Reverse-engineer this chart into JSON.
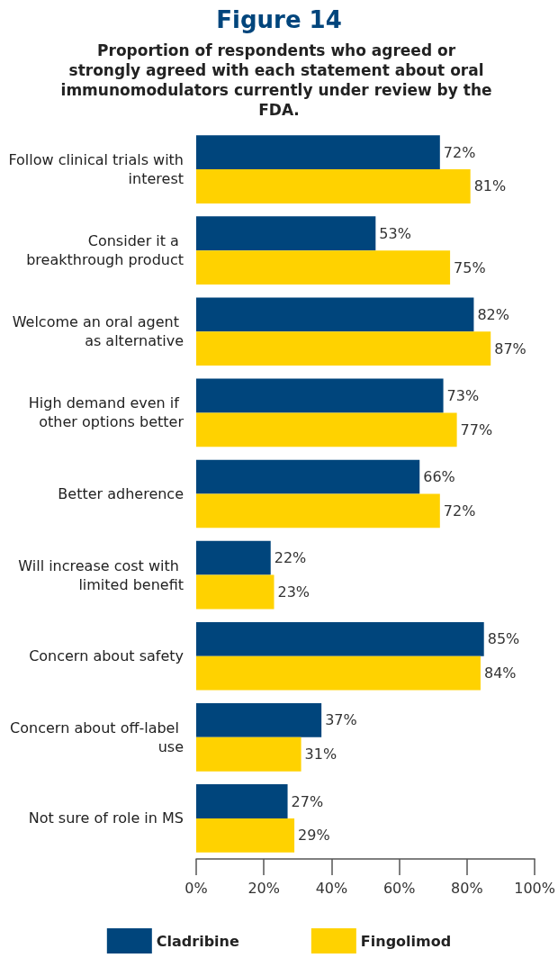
{
  "chart_data": {
    "type": "bar",
    "orientation": "horizontal",
    "title": "Figure 14",
    "subtitle": "Proportion of respondents who agreed or strongly agreed with each statement about oral immunomodulators currently under review by the FDA.",
    "categories": [
      "Follow clinical trials with interest",
      "Consider it a breakthrough product",
      "Welcome an oral agent as alternative",
      "High demand even if other options better",
      "Better adherence",
      "Will increase cost with limited benefit",
      "Concern about safety",
      "Concern about off-label use",
      "Not sure of role in MS"
    ],
    "series": [
      {
        "name": "Cladribine",
        "color": "#00457c",
        "values": [
          72,
          53,
          82,
          73,
          66,
          22,
          85,
          37,
          27
        ],
        "value_labels": [
          "72%",
          "53%",
          "82%",
          "73%",
          "66%",
          "22%",
          "85%",
          "37%",
          "27%"
        ]
      },
      {
        "name": "Fingolimod",
        "color": "#ffd200",
        "values": [
          81,
          75,
          87,
          77,
          72,
          23,
          84,
          31,
          29
        ],
        "value_labels": [
          "81%",
          "75%",
          "87%",
          "77%",
          "72%",
          "23%",
          "84%",
          "31%",
          "29%"
        ]
      }
    ],
    "xlim": [
      0,
      100
    ],
    "xticks": [
      {
        "value": 0,
        "label": "0%"
      },
      {
        "value": 20,
        "label": "20%"
      },
      {
        "value": 40,
        "label": "40%"
      },
      {
        "value": 60,
        "label": "60%"
      },
      {
        "value": 80,
        "label": "80%"
      },
      {
        "value": 100,
        "label": "100%"
      }
    ],
    "grid": false,
    "legend": "bottom"
  }
}
